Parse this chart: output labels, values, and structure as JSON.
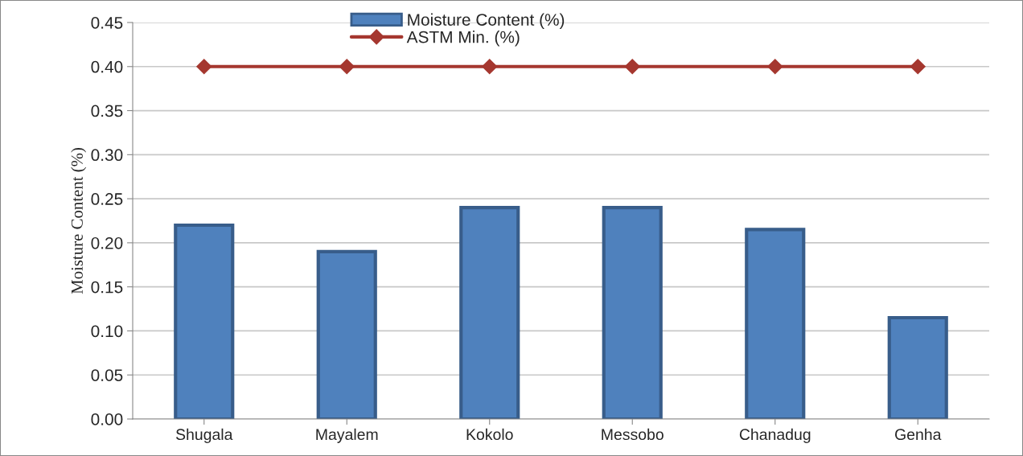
{
  "chart_data": {
    "type": "bar",
    "ylabel": "Moisture Content (%)",
    "categories": [
      "Shugala",
      "Mayalem",
      "Kokolo",
      "Messobo",
      "Chanadug",
      "Genha"
    ],
    "series": [
      {
        "name": "Moisture Content (%)",
        "color": "#4f81bd",
        "values": [
          0.22,
          0.19,
          0.24,
          0.24,
          0.215,
          0.115
        ]
      },
      {
        "name": "ASTM Min. (%)",
        "type": "line",
        "color": "#a5372f",
        "marker": "diamond",
        "values": [
          0.4,
          0.4,
          0.4,
          0.4,
          0.4,
          0.4
        ]
      }
    ],
    "ylim": [
      0,
      0.45
    ],
    "yticks": [
      {
        "value": 0,
        "label": "0.00"
      },
      {
        "value": 0.05,
        "label": "0.05"
      },
      {
        "value": 0.1,
        "label": "0.10"
      },
      {
        "value": 0.15,
        "label": "0.15"
      },
      {
        "value": 0.2,
        "label": "0.20"
      },
      {
        "value": 0.25,
        "label": "0.25"
      },
      {
        "value": 0.3,
        "label": "0.30"
      },
      {
        "value": 0.35,
        "label": "0.35"
      },
      {
        "value": 0.4,
        "label": "0.40"
      },
      {
        "value": 0.45,
        "label": "0.45"
      }
    ],
    "grid": "y",
    "legend": "top"
  }
}
